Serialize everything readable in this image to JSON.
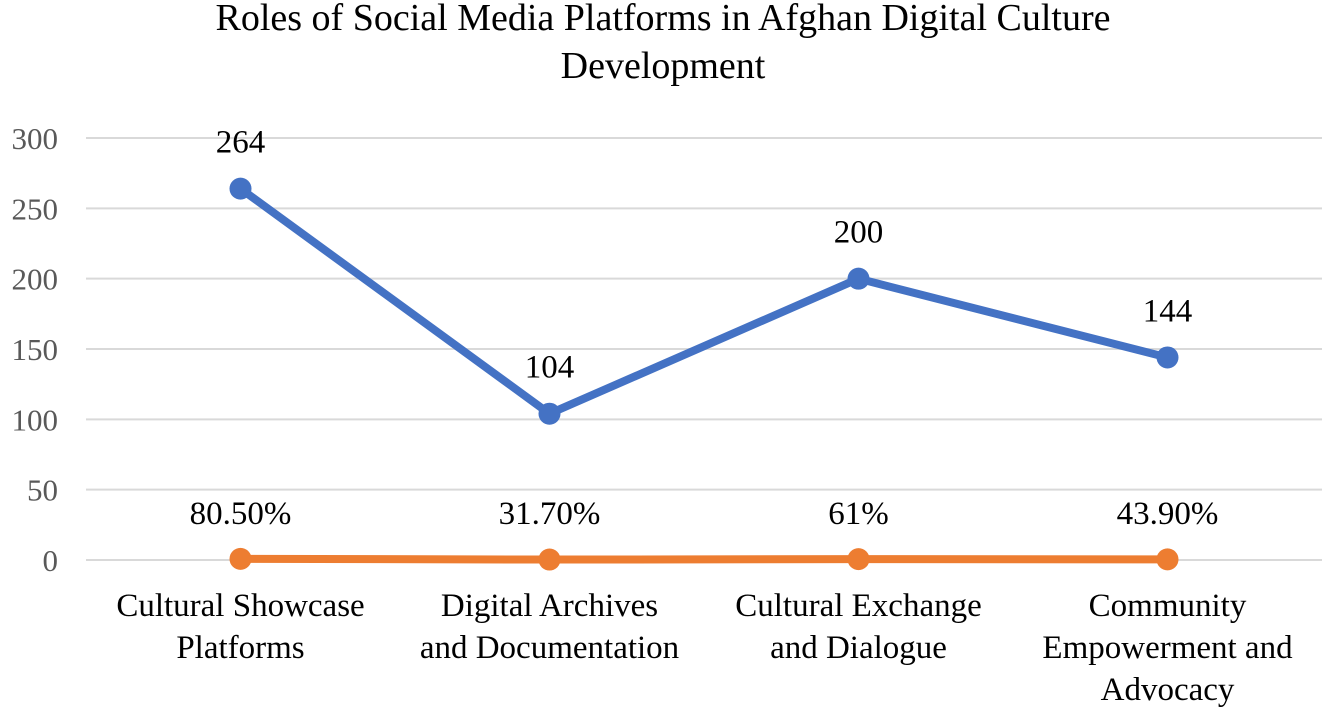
{
  "chart_data": {
    "type": "line",
    "title_lines": [
      "Roles of Social Media Platforms in Afghan Digital Culture",
      "Development"
    ],
    "xlabel": "",
    "ylabel": "",
    "categories": [
      [
        "Cultural Showcase",
        "Platforms"
      ],
      [
        "Digital Archives",
        "and Documentation"
      ],
      [
        "Cultural Exchange",
        "and Dialogue"
      ],
      [
        "Community",
        "Empowerment and",
        "Advocacy"
      ]
    ],
    "ylim": [
      0,
      300
    ],
    "yticks": [
      "0",
      "50",
      "100",
      "150",
      "200",
      "250",
      "300"
    ],
    "grid": true,
    "legend": "none",
    "series": [
      {
        "values": [
          264,
          104,
          200,
          144
        ],
        "labels": [
          "264",
          "104",
          "200",
          "144"
        ],
        "color": "#4472C4"
      },
      {
        "values": [
          0.805,
          0.317,
          0.61,
          0.439
        ],
        "labels": [
          "80.50%",
          "31.70%",
          "61%",
          "43.90%"
        ],
        "color": "#ED7D31"
      }
    ]
  }
}
